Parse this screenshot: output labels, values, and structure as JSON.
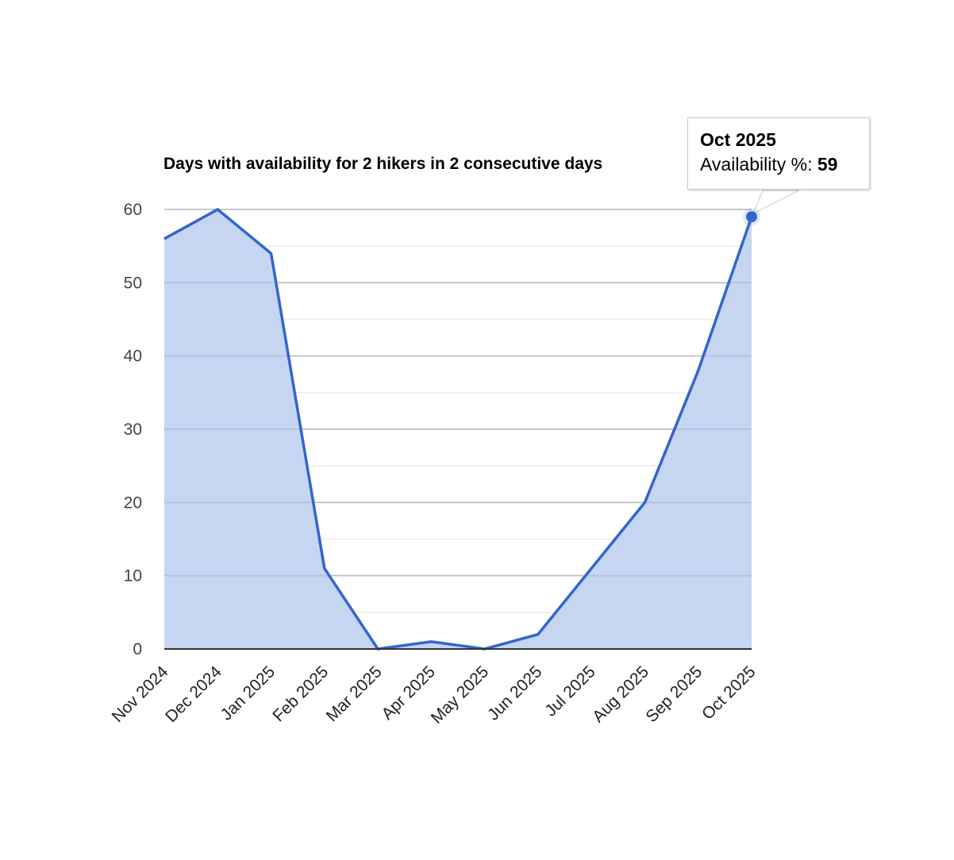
{
  "chart_data": {
    "type": "area",
    "title": "Days with availability for 2 hikers in 2 consecutive days",
    "xlabel": "",
    "ylabel": "",
    "categories": [
      "Nov 2024",
      "Dec 2024",
      "Jan 2025",
      "Feb 2025",
      "Mar 2025",
      "Apr 2025",
      "May 2025",
      "Jun 2025",
      "Jul 2025",
      "Aug 2025",
      "Sep 2025",
      "Oct 2025"
    ],
    "series": [
      {
        "name": "Availability %",
        "values": [
          56,
          60,
          54,
          11,
          0,
          1,
          0,
          2,
          11,
          20,
          38,
          59
        ]
      }
    ],
    "ylim": [
      0,
      60
    ],
    "yticks": [
      0,
      10,
      20,
      30,
      40,
      50,
      60
    ],
    "grid": true,
    "legend": "none",
    "colors": {
      "line": "#3366cc",
      "fill": "#c3d3f0"
    }
  },
  "tooltip": {
    "title": "Oct 2025",
    "label": "Availability %: ",
    "value": "59"
  }
}
